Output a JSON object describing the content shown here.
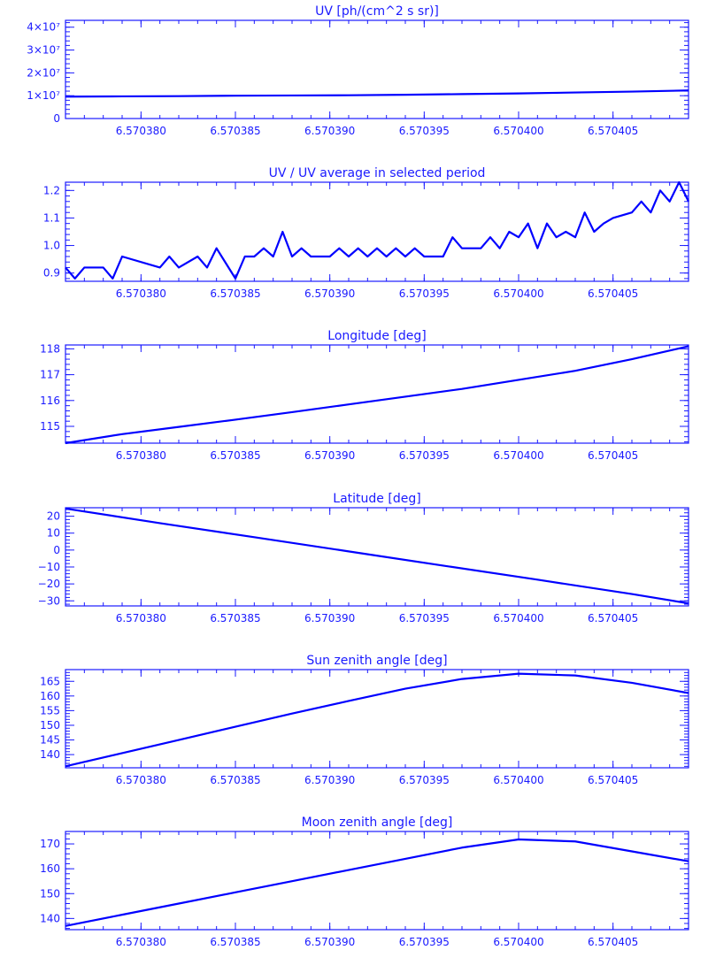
{
  "colors": {
    "accent": "#1a1aff",
    "line": "#0000ff",
    "background": "#ffffff"
  },
  "chart_data": [
    {
      "type": "line",
      "title": "UV [ph/(cm^2 s sr)]",
      "xlabel": "",
      "ylabel": "",
      "xlim": [
        6.570376,
        6.570409
      ],
      "ylim": [
        0,
        43000000
      ],
      "x_ticks": [
        6.57038,
        6.570385,
        6.57039,
        6.570395,
        6.5704,
        6.570405
      ],
      "x_tick_labels": [
        "6.570380",
        "6.570385",
        "6.570390",
        "6.570395",
        "6.570400",
        "6.570405"
      ],
      "y_ticks": [
        0,
        10000000,
        20000000,
        30000000,
        40000000
      ],
      "y_tick_labels": [
        "0",
        "1×10⁷",
        "2×10⁷",
        "3×10⁷",
        "4×10⁷"
      ],
      "grid": false,
      "series": [
        {
          "x": [
            6.570376,
            6.570379,
            6.570382,
            6.570385,
            6.570388,
            6.570391,
            6.570394,
            6.570397,
            6.5704,
            6.570403,
            6.570406,
            6.570409
          ],
          "values": [
            9600000,
            9700000,
            9800000,
            10000000,
            10100000,
            10200000,
            10400000,
            10700000,
            11000000,
            11400000,
            11800000,
            12300000
          ]
        }
      ]
    },
    {
      "type": "line",
      "title": "UV / UV average in selected period",
      "xlabel": "",
      "ylabel": "",
      "xlim": [
        6.570376,
        6.570409
      ],
      "ylim": [
        0.87,
        1.23
      ],
      "x_ticks": [
        6.57038,
        6.570385,
        6.57039,
        6.570395,
        6.5704,
        6.570405
      ],
      "x_tick_labels": [
        "6.570380",
        "6.570385",
        "6.570390",
        "6.570395",
        "6.570400",
        "6.570405"
      ],
      "y_ticks": [
        0.9,
        1.0,
        1.1,
        1.2
      ],
      "y_tick_labels": [
        "0.9",
        "1.0",
        "1.1",
        "1.2"
      ],
      "grid": false,
      "series": [
        {
          "x": [
            6.570376,
            6.5703765,
            6.570377,
            6.570378,
            6.5703785,
            6.570379,
            6.570381,
            6.5703815,
            6.570382,
            6.570383,
            6.5703835,
            6.570384,
            6.570385,
            6.5703855,
            6.570386,
            6.5703865,
            6.570387,
            6.5703875,
            6.570388,
            6.5703885,
            6.570389,
            6.57039,
            6.5703905,
            6.570391,
            6.5703915,
            6.570392,
            6.5703925,
            6.570393,
            6.5703935,
            6.570394,
            6.5703945,
            6.570395,
            6.570396,
            6.5703965,
            6.570397,
            6.570398,
            6.5703985,
            6.570399,
            6.5703995,
            6.5704,
            6.5704005,
            6.570401,
            6.5704015,
            6.570402,
            6.5704025,
            6.570403,
            6.5704035,
            6.570404,
            6.5704045,
            6.570405,
            6.570406,
            6.5704065,
            6.570407,
            6.5704075,
            6.570408,
            6.5704085,
            6.570409
          ],
          "values": [
            0.92,
            0.88,
            0.92,
            0.92,
            0.88,
            0.96,
            0.92,
            0.96,
            0.92,
            0.96,
            0.92,
            0.99,
            0.88,
            0.96,
            0.96,
            0.99,
            0.96,
            1.05,
            0.96,
            0.99,
            0.96,
            0.96,
            0.99,
            0.96,
            0.99,
            0.96,
            0.99,
            0.96,
            0.99,
            0.96,
            0.99,
            0.96,
            0.96,
            1.03,
            0.99,
            0.99,
            1.03,
            0.99,
            1.05,
            1.03,
            1.08,
            0.99,
            1.08,
            1.03,
            1.05,
            1.03,
            1.12,
            1.05,
            1.08,
            1.1,
            1.12,
            1.16,
            1.12,
            1.2,
            1.16,
            1.23,
            1.16
          ]
        }
      ]
    },
    {
      "type": "line",
      "title": "Longitude [deg]",
      "xlabel": "",
      "ylabel": "",
      "xlim": [
        6.570376,
        6.570409
      ],
      "ylim": [
        114.35,
        118.15
      ],
      "x_ticks": [
        6.57038,
        6.570385,
        6.57039,
        6.570395,
        6.5704,
        6.570405
      ],
      "x_tick_labels": [
        "6.570380",
        "6.570385",
        "6.570390",
        "6.570395",
        "6.570400",
        "6.570405"
      ],
      "y_ticks": [
        115,
        116,
        117,
        118
      ],
      "y_tick_labels": [
        "115",
        "116",
        "117",
        "118"
      ],
      "grid": false,
      "series": [
        {
          "x": [
            6.570376,
            6.570379,
            6.570382,
            6.570385,
            6.570388,
            6.570391,
            6.570394,
            6.570397,
            6.5704,
            6.570403,
            6.570406,
            6.570409
          ],
          "values": [
            114.35,
            114.7,
            114.98,
            115.26,
            115.55,
            115.85,
            116.15,
            116.45,
            116.8,
            117.15,
            117.6,
            118.1
          ]
        }
      ]
    },
    {
      "type": "line",
      "title": "Latitude [deg]",
      "xlabel": "",
      "ylabel": "",
      "xlim": [
        6.570376,
        6.570409
      ],
      "ylim": [
        -33,
        25
      ],
      "x_ticks": [
        6.57038,
        6.570385,
        6.57039,
        6.570395,
        6.5704,
        6.570405
      ],
      "x_tick_labels": [
        "6.570380",
        "6.570385",
        "6.570390",
        "6.570395",
        "6.570400",
        "6.570405"
      ],
      "y_ticks": [
        -30,
        -20,
        -10,
        0,
        10,
        20
      ],
      "y_tick_labels": [
        "−30",
        "−20",
        "−10",
        "0",
        "10",
        "20"
      ],
      "grid": false,
      "series": [
        {
          "x": [
            6.570376,
            6.570381,
            6.570386,
            6.570391,
            6.570396,
            6.570401,
            6.570406,
            6.570409
          ],
          "values": [
            24.5,
            15.9,
            7.6,
            -0.8,
            -9.2,
            -17.5,
            -26.0,
            -31.5
          ]
        }
      ]
    },
    {
      "type": "line",
      "title": "Sun zenith angle [deg]",
      "xlabel": "",
      "ylabel": "",
      "xlim": [
        6.570376,
        6.570409
      ],
      "ylim": [
        135.5,
        169
      ],
      "x_ticks": [
        6.57038,
        6.570385,
        6.57039,
        6.570395,
        6.5704,
        6.570405
      ],
      "x_tick_labels": [
        "6.570380",
        "6.570385",
        "6.570390",
        "6.570395",
        "6.570400",
        "6.570405"
      ],
      "y_ticks": [
        140,
        145,
        150,
        155,
        160,
        165
      ],
      "y_tick_labels": [
        "140",
        "145",
        "150",
        "155",
        "160",
        "165"
      ],
      "grid": false,
      "series": [
        {
          "x": [
            6.570376,
            6.570379,
            6.570382,
            6.570385,
            6.570388,
            6.570391,
            6.570394,
            6.570397,
            6.5704,
            6.570403,
            6.570406,
            6.570409
          ],
          "values": [
            136,
            140.5,
            145,
            149.5,
            154,
            158.3,
            162.5,
            165.8,
            167.6,
            167.0,
            164.5,
            161
          ]
        }
      ]
    },
    {
      "type": "line",
      "title": "Moon zenith angle [deg]",
      "xlabel": "",
      "ylabel": "",
      "xlim": [
        6.570376,
        6.570409
      ],
      "ylim": [
        135.5,
        175
      ],
      "x_ticks": [
        6.57038,
        6.570385,
        6.57039,
        6.570395,
        6.5704,
        6.570405
      ],
      "x_tick_labels": [
        "6.570380",
        "6.570385",
        "6.570390",
        "6.570395",
        "6.570400",
        "6.570405"
      ],
      "y_ticks": [
        140,
        150,
        160,
        170
      ],
      "y_tick_labels": [
        "140",
        "150",
        "160",
        "170"
      ],
      "grid": false,
      "series": [
        {
          "x": [
            6.570376,
            6.570379,
            6.570382,
            6.570385,
            6.570388,
            6.570391,
            6.570394,
            6.570397,
            6.5704,
            6.570403,
            6.570406,
            6.570409
          ],
          "values": [
            137,
            141.5,
            146,
            150.5,
            155,
            159.5,
            164,
            168.5,
            171.8,
            171.0,
            167.0,
            163
          ]
        }
      ]
    }
  ]
}
